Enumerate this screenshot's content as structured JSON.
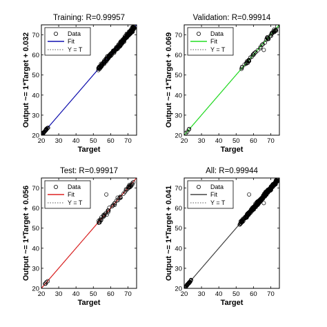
{
  "chart_data": [
    {
      "type": "scatter",
      "title": "Training: R=0.99957",
      "xlabel": "Target",
      "ylabel": "Output ~= 1*Target + 0.032",
      "xlim": [
        20,
        75
      ],
      "ylim": [
        20,
        75
      ],
      "xticks": [
        20,
        30,
        40,
        50,
        60,
        70
      ],
      "yticks": [
        20,
        30,
        40,
        50,
        60,
        70
      ],
      "fit": {
        "slope": 1,
        "intercept": 0.032,
        "color": "#1010b0"
      },
      "legend": {
        "position": "top-left",
        "entries": [
          "Data",
          "Fit",
          "Y = T"
        ]
      },
      "grid": false
    },
    {
      "type": "scatter",
      "title": "Validation: R=0.99914",
      "xlabel": "Target",
      "ylabel": "Output ~= 1*Target + 0.069",
      "xlim": [
        20,
        75
      ],
      "ylim": [
        20,
        75
      ],
      "xticks": [
        20,
        30,
        40,
        50,
        60,
        70
      ],
      "yticks": [
        20,
        30,
        40,
        50,
        60,
        70
      ],
      "fit": {
        "slope": 1,
        "intercept": 0.069,
        "color": "#22dd22"
      },
      "legend": {
        "position": "top-left",
        "entries": [
          "Data",
          "Fit",
          "Y = T"
        ]
      },
      "grid": false
    },
    {
      "type": "scatter",
      "title": "Test: R=0.99917",
      "xlabel": "Target",
      "ylabel": "Output ~= 1*Target + 0.056",
      "xlim": [
        20,
        75
      ],
      "ylim": [
        20,
        75
      ],
      "xticks": [
        20,
        30,
        40,
        50,
        60,
        70
      ],
      "yticks": [
        20,
        30,
        40,
        50,
        60,
        70
      ],
      "fit": {
        "slope": 1,
        "intercept": 0.056,
        "color": "#dd2222"
      },
      "legend": {
        "position": "top-left",
        "entries": [
          "Data",
          "Fit",
          "Y = T"
        ]
      },
      "grid": false
    },
    {
      "type": "scatter",
      "title": "All: R=0.99944",
      "xlabel": "Target",
      "ylabel": "Output ~= 1*Target + 0.041",
      "xlim": [
        20,
        75
      ],
      "ylim": [
        20,
        75
      ],
      "xticks": [
        20,
        30,
        40,
        50,
        60,
        70
      ],
      "yticks": [
        20,
        30,
        40,
        50,
        60,
        70
      ],
      "fit": {
        "slope": 1,
        "intercept": 0.041,
        "color": "#444444"
      },
      "legend": {
        "position": "top-left",
        "entries": [
          "Data",
          "Fit",
          "Y = T"
        ]
      },
      "grid": false
    }
  ]
}
